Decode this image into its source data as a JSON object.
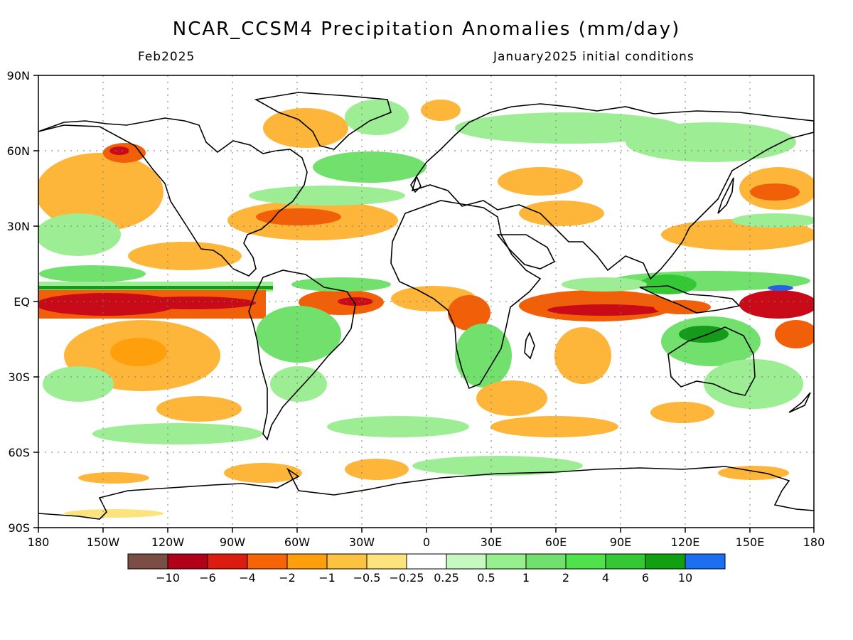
{
  "header": {
    "title": "NCAR_CCSM4 Precipitation Anomalies (mm/day)",
    "valid_month": "Feb2025",
    "init": "January2025 initial conditions"
  },
  "map": {
    "lat_labels": [
      "90N",
      "60N",
      "30N",
      "EQ",
      "30S",
      "60S",
      "90S"
    ],
    "lon_labels": [
      "180",
      "150W",
      "120W",
      "90W",
      "60W",
      "30W",
      "0",
      "30E",
      "60E",
      "90E",
      "120E",
      "150E",
      "180"
    ],
    "grid": "dotted",
    "projection": "cylindrical equidistant"
  },
  "colorbar": {
    "colors": [
      "#7a4e44",
      "#b3001a",
      "#db1c0f",
      "#f76407",
      "#ff9f0c",
      "#fcc241",
      "#fde37c",
      "#ffffff",
      "#c8f8c1",
      "#95ef8d",
      "#72e06c",
      "#4fe24a",
      "#34c934",
      "#12a013",
      "#1c6ff0"
    ],
    "tick_labels": [
      "−10",
      "−6",
      "−4",
      "−2",
      "−1",
      "−0.5",
      "−0.25",
      "0.25",
      "0.5",
      "1",
      "2",
      "4",
      "6",
      "10"
    ]
  },
  "colors": {
    "dry_strong": "#c90a18",
    "dry_mid": "#f25f09",
    "dry_light": "#fdb53a",
    "wet_light": "#9ced93",
    "wet_mid": "#4fd44a",
    "wet_strong": "#159a1a",
    "wet_extreme": "#2860e8"
  }
}
